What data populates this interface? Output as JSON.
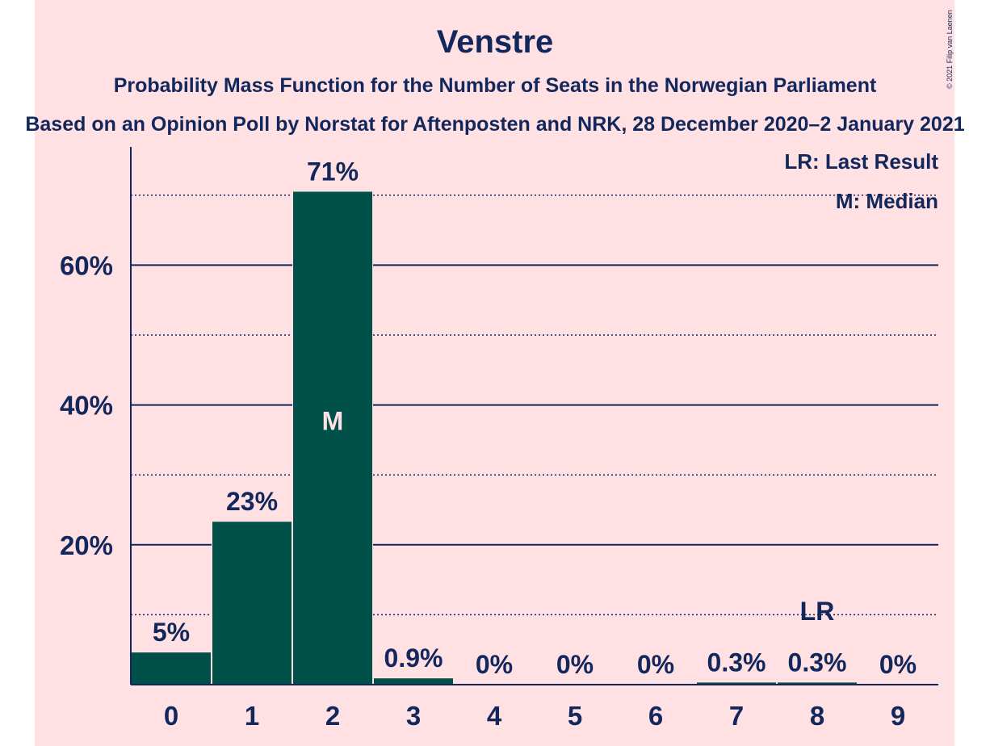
{
  "chart_data": {
    "type": "bar",
    "title": "Venstre",
    "subtitle": "Probability Mass Function for the Number of Seats in the Norwegian Parliament",
    "subtitle2": "Based on an Opinion Poll by Norstat for Aftenposten and NRK, 28 December 2020–2 January 2021",
    "copyright": "© 2021 Filip van Laenen",
    "categories": [
      "0",
      "1",
      "2",
      "3",
      "4",
      "5",
      "6",
      "7",
      "8",
      "9"
    ],
    "values": [
      4.6,
      23.3,
      70.5,
      0.9,
      0,
      0,
      0,
      0.3,
      0.3,
      0
    ],
    "data_labels": [
      "5%",
      "23%",
      "71%",
      "0.9%",
      "0%",
      "0%",
      "0%",
      "0.3%",
      "0.3%",
      "0%"
    ],
    "y_ticks": [
      {
        "value": 20,
        "label": "20%"
      },
      {
        "value": 40,
        "label": "40%"
      },
      {
        "value": 60,
        "label": "60%"
      }
    ],
    "minor_gridlines": [
      10,
      30,
      50,
      70
    ],
    "ylim": [
      0,
      77
    ],
    "median_index": 2,
    "median_marker": "M",
    "last_result_index": 8,
    "last_result_marker": "LR",
    "legend": [
      "LR: Last Result",
      "M: Median"
    ],
    "legend_position": "top-right",
    "colors": {
      "bar": "#00504a",
      "background": "#ffe0e3",
      "text": "#12275b",
      "grid": "#12275b"
    }
  }
}
